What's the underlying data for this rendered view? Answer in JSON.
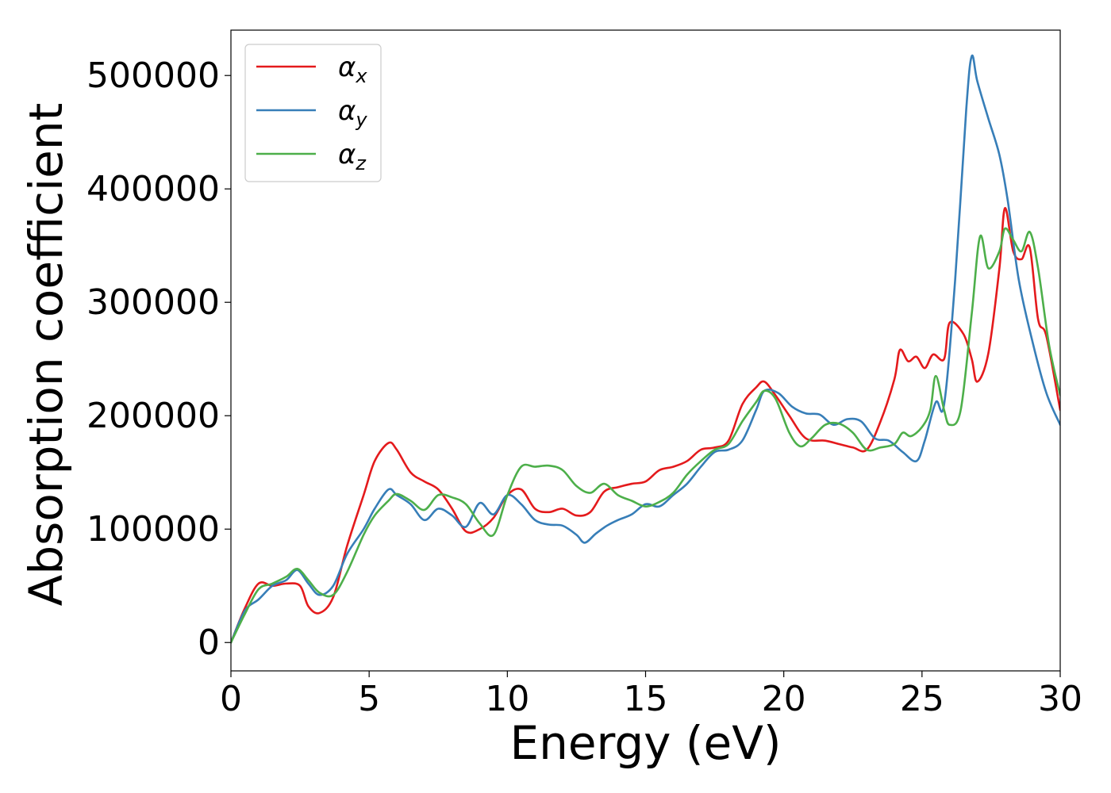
{
  "chart_data": {
    "type": "line",
    "xlabel": "Energy (eV)",
    "ylabel": "Absorption coefficient",
    "xlim": [
      0,
      30
    ],
    "ylim": [
      -25000,
      540000
    ],
    "xticks": [
      0,
      5,
      10,
      15,
      20,
      25,
      30
    ],
    "yticks": [
      0,
      100000,
      200000,
      300000,
      400000,
      500000
    ],
    "legend_position": "top-left",
    "grid": false,
    "series": [
      {
        "name": "α",
        "subscript": "x",
        "color": "#e41a1c",
        "x": [
          0,
          0.5,
          1.0,
          1.5,
          2.0,
          2.5,
          2.8,
          3.2,
          3.7,
          4.2,
          4.8,
          5.2,
          5.7,
          6.0,
          6.5,
          7.0,
          7.5,
          8.0,
          8.5,
          9.0,
          9.5,
          10.0,
          10.5,
          11.0,
          11.5,
          12.0,
          12.5,
          13.0,
          13.5,
          14.0,
          14.5,
          15.0,
          15.5,
          16.0,
          16.5,
          17.0,
          17.5,
          18.0,
          18.5,
          19.0,
          19.3,
          19.7,
          20.2,
          20.8,
          21.5,
          22.0,
          22.5,
          23.0,
          23.5,
          24.0,
          24.2,
          24.5,
          24.8,
          25.1,
          25.4,
          25.8,
          26.0,
          26.5,
          26.8,
          27.0,
          27.4,
          27.8,
          28.0,
          28.3,
          28.6,
          28.9,
          29.2,
          29.5,
          30.0
        ],
        "y": [
          0,
          30000,
          52000,
          50000,
          52000,
          50000,
          32000,
          26000,
          40000,
          85000,
          130000,
          160000,
          176000,
          170000,
          150000,
          142000,
          135000,
          118000,
          98000,
          100000,
          110000,
          130000,
          135000,
          118000,
          115000,
          118000,
          112000,
          115000,
          133000,
          137000,
          140000,
          142000,
          152000,
          155000,
          160000,
          170000,
          172000,
          178000,
          210000,
          225000,
          230000,
          218000,
          200000,
          180000,
          178000,
          175000,
          172000,
          170000,
          195000,
          232000,
          258000,
          248000,
          252000,
          242000,
          254000,
          250000,
          282000,
          272000,
          250000,
          230000,
          255000,
          330000,
          383000,
          345000,
          338000,
          348000,
          285000,
          270000,
          205000
        ]
      },
      {
        "name": "α",
        "subscript": "y",
        "color": "#377eb8",
        "x": [
          0,
          0.5,
          1.0,
          1.5,
          2.0,
          2.4,
          2.8,
          3.2,
          3.7,
          4.2,
          4.8,
          5.2,
          5.7,
          6.0,
          6.5,
          7.0,
          7.5,
          8.0,
          8.5,
          9.0,
          9.5,
          10.0,
          10.5,
          11.0,
          11.5,
          12.0,
          12.5,
          12.8,
          13.2,
          13.6,
          14.0,
          14.5,
          15.0,
          15.5,
          16.0,
          16.5,
          17.0,
          17.5,
          18.0,
          18.5,
          19.0,
          19.3,
          19.8,
          20.3,
          20.8,
          21.3,
          21.8,
          22.3,
          22.8,
          23.3,
          23.8,
          24.3,
          24.8,
          25.1,
          25.5,
          25.8,
          26.2,
          26.6,
          26.8,
          27.0,
          27.4,
          27.8,
          28.1,
          28.5,
          29.0,
          29.5,
          30.0
        ],
        "y": [
          0,
          28000,
          38000,
          50000,
          55000,
          64000,
          52000,
          42000,
          50000,
          78000,
          100000,
          118000,
          135000,
          130000,
          122000,
          108000,
          118000,
          112000,
          102000,
          123000,
          113000,
          130000,
          122000,
          108000,
          104000,
          103000,
          95000,
          88000,
          96000,
          103000,
          108000,
          113000,
          122000,
          120000,
          130000,
          140000,
          155000,
          168000,
          170000,
          178000,
          205000,
          222000,
          220000,
          208000,
          202000,
          201000,
          192000,
          197000,
          195000,
          180000,
          178000,
          168000,
          160000,
          178000,
          212000,
          210000,
          320000,
          470000,
          517000,
          495000,
          462000,
          430000,
          390000,
          320000,
          265000,
          220000,
          192000
        ]
      },
      {
        "name": "α",
        "subscript": "z",
        "color": "#4daf4a",
        "x": [
          0,
          0.5,
          1.0,
          1.5,
          2.0,
          2.4,
          2.8,
          3.2,
          3.7,
          4.2,
          4.8,
          5.2,
          5.7,
          6.0,
          6.5,
          7.0,
          7.5,
          8.0,
          8.5,
          9.0,
          9.5,
          10.0,
          10.5,
          11.0,
          11.5,
          12.0,
          12.5,
          13.0,
          13.5,
          14.0,
          14.5,
          15.0,
          15.5,
          16.0,
          16.5,
          17.0,
          17.5,
          18.0,
          18.5,
          19.0,
          19.3,
          19.7,
          20.2,
          20.6,
          21.0,
          21.5,
          22.0,
          22.5,
          23.0,
          23.5,
          24.0,
          24.3,
          24.6,
          25.0,
          25.3,
          25.5,
          25.8,
          26.0,
          26.4,
          26.8,
          27.1,
          27.4,
          27.8,
          28.0,
          28.3,
          28.6,
          28.9,
          29.2,
          29.6,
          30.0
        ],
        "y": [
          0,
          25000,
          47000,
          52000,
          58000,
          65000,
          55000,
          44000,
          42000,
          62000,
          95000,
          112000,
          125000,
          131000,
          125000,
          117000,
          130000,
          128000,
          122000,
          105000,
          95000,
          130000,
          155000,
          155000,
          156000,
          152000,
          138000,
          132000,
          140000,
          130000,
          125000,
          120000,
          124000,
          132000,
          148000,
          160000,
          170000,
          175000,
          195000,
          212000,
          222000,
          215000,
          185000,
          173000,
          180000,
          192000,
          193000,
          185000,
          170000,
          172000,
          175000,
          185000,
          182000,
          190000,
          205000,
          235000,
          205000,
          192000,
          205000,
          290000,
          358000,
          330000,
          345000,
          365000,
          355000,
          345000,
          362000,
          330000,
          262000,
          218000
        ]
      }
    ]
  }
}
